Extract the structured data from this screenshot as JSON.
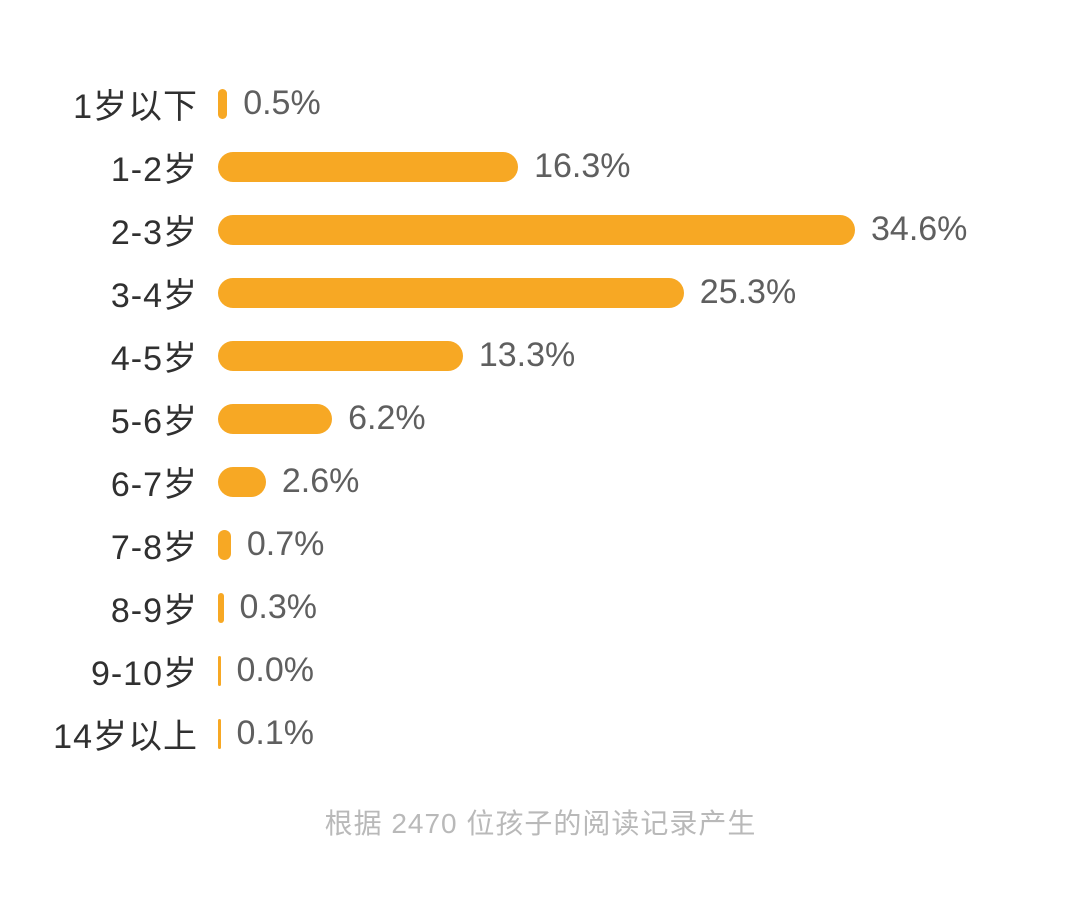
{
  "chart_data": {
    "type": "bar",
    "orientation": "horizontal",
    "title": "",
    "xlabel": "",
    "ylabel": "",
    "xlim": [
      0,
      34.6
    ],
    "grid": false,
    "legend": "none",
    "bar_color": "#F7A824",
    "categories": [
      "1岁以下",
      "1-2岁",
      "2-3岁",
      "3-4岁",
      "4-5岁",
      "5-6岁",
      "6-7岁",
      "7-8岁",
      "8-9岁",
      "9-10岁",
      "14岁以上"
    ],
    "values": [
      0.5,
      16.3,
      34.6,
      25.3,
      13.3,
      6.2,
      2.6,
      0.7,
      0.3,
      0.0,
      0.1
    ],
    "value_labels": [
      "0.5%",
      "16.3%",
      "34.6%",
      "25.3%",
      "13.3%",
      "6.2%",
      "2.6%",
      "0.7%",
      "0.3%",
      "0.0%",
      "0.1%"
    ],
    "footer": "根据 2470 位孩子的阅读记录产生"
  }
}
